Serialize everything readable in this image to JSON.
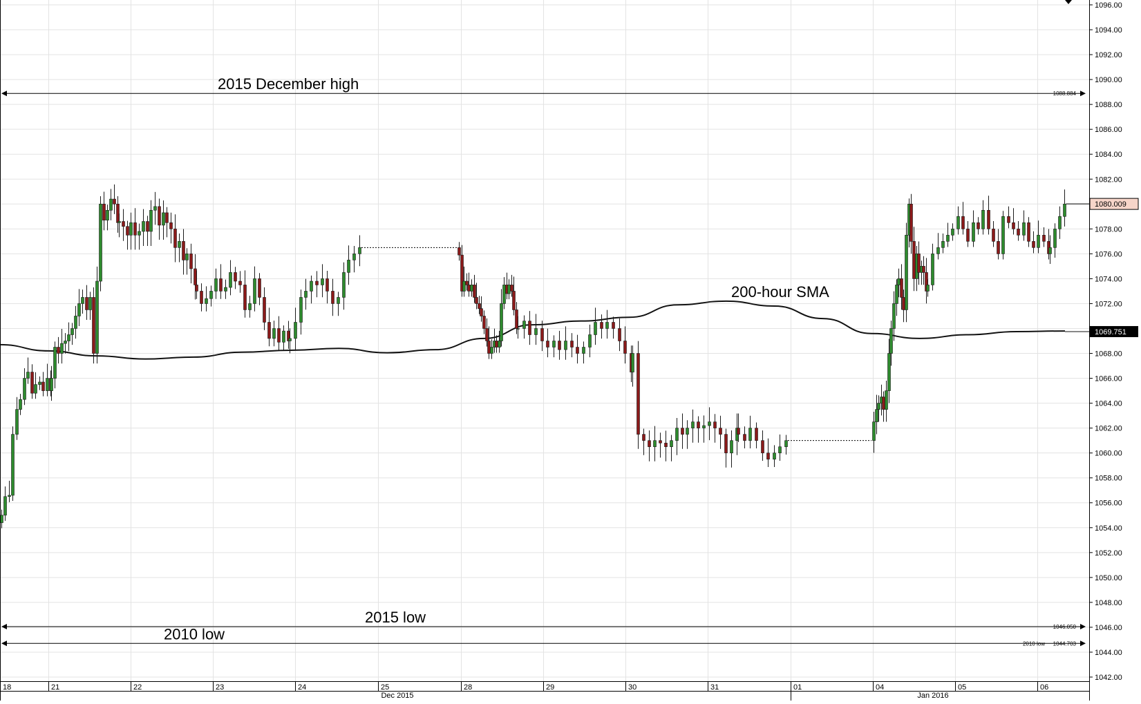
{
  "chart_data": {
    "type": "candlestick",
    "y_axis": {
      "position": "right",
      "ylim": [
        1041.0,
        1096.5
      ],
      "ticks": [
        1042,
        1044,
        1046,
        1048,
        1050,
        1052,
        1054,
        1056,
        1058,
        1060,
        1062,
        1064,
        1066,
        1068,
        1070,
        1072,
        1074,
        1076,
        1078,
        1080,
        1082,
        1084,
        1086,
        1088,
        1090,
        1092,
        1094,
        1096
      ],
      "tick_labels": [
        "1042.00",
        "1044.00",
        "1046.00",
        "1048.00",
        "1050.00",
        "1052.00",
        "1054.00",
        "1056.00",
        "1058.00",
        "1060.00",
        "1062.00",
        "1064.00",
        "1066.00",
        "1068.00",
        "1070.00",
        "1072.00",
        "1074.00",
        "1076.00",
        "1078.00",
        "1080.00",
        "1082.00",
        "1084.00",
        "1086.00",
        "1088.00",
        "1090.00",
        "1092.00",
        "1094.00",
        "1096.00"
      ]
    },
    "x_axis": {
      "day_labels": [
        "18",
        "21",
        "22",
        "23",
        "24",
        "25",
        "28",
        "29",
        "30",
        "31",
        "01",
        "04",
        "05",
        "06"
      ],
      "month_labels": [
        "Dec 2015",
        "Jan 2016"
      ]
    },
    "grid": true,
    "horizontal_levels": [
      {
        "name": "2015 December high",
        "value": 1088.884,
        "label": "2015 December high",
        "value_label": "1088.884"
      },
      {
        "name": "2015 low",
        "value": 1046.05,
        "label": "2015 low",
        "value_label": "1046.050"
      },
      {
        "name": "2010 low",
        "value": 1044.703,
        "label": "2010 low",
        "value_label": "1044.703",
        "small_label": "2010 low"
      }
    ],
    "price_markers": {
      "last_price": 1080.009,
      "last_price_label": "1080.009",
      "sma_value": 1069.751,
      "sma_value_label": "1069.751"
    },
    "annotations": [
      "200-hour SMA"
    ],
    "segments": [
      {
        "day": "18",
        "closes": [
          1055.0,
          1056.5,
          1056.6,
          1061.5,
          1063.5,
          1064.3,
          1066.0,
          1066.5,
          1064.8,
          1065.5,
          1065.7,
          1065.0,
          1066.0,
          1065.0
        ]
      },
      {
        "day": "21",
        "closes": [
          1066.0,
          1068.5,
          1068.0,
          1068.8,
          1069.0,
          1069.5,
          1070.0,
          1071.0,
          1072.0,
          1072.5,
          1071.5,
          1072.5,
          1068.0,
          1073.8,
          1080.0,
          1078.7,
          1079.5,
          1080.4,
          1080.0,
          1078.5
        ]
      },
      {
        "day": "22",
        "closes": [
          1078.6,
          1078.2,
          1077.5,
          1078.5,
          1077.5,
          1077.8,
          1078.6,
          1077.8,
          1079.5,
          1079.8,
          1078.3,
          1079.3,
          1078.5,
          1078.0,
          1076.5,
          1077.0,
          1075.5,
          1076.0,
          1074.8,
          1073.5
        ]
      },
      {
        "day": "23",
        "closes": [
          1073.0,
          1072.0,
          1072.4,
          1073.0,
          1074.0,
          1073.0,
          1073.3,
          1074.5,
          1073.8,
          1073.5,
          1071.5,
          1072.0,
          1074.0,
          1072.5,
          1070.5,
          1069.2,
          1070.0,
          1068.9,
          1069.8,
          1069.0
        ]
      },
      {
        "day": "24",
        "closes": [
          1069.2,
          1070.5,
          1072.5,
          1073.0,
          1073.8,
          1073.5,
          1074.0,
          1073.0,
          1072.0,
          1072.5,
          1074.5,
          1075.5,
          1076.0,
          1076.5
        ]
      },
      {
        "day": "28",
        "closes": [
          1075.9,
          1073.0,
          1073.8,
          1073.5,
          1073.0,
          1073.5,
          1072.5,
          1072.0,
          1071.6,
          1071.0,
          1070.0,
          1069.0,
          1068.0,
          1068.5,
          1069.0,
          1068.5,
          1069.0,
          1072.0,
          1073.5,
          1072.8,
          1073.5,
          1073.0,
          1071.5,
          1070.0
        ]
      },
      {
        "day": "29",
        "closes": [
          1070.0,
          1070.6,
          1069.5,
          1070.0,
          1069.0,
          1068.5,
          1069.0,
          1068.3,
          1069.0,
          1068.5,
          1068.0,
          1068.5,
          1069.5,
          1070.5,
          1070.0,
          1070.5,
          1070.0,
          1069.0,
          1068.0,
          1066.5
        ]
      },
      {
        "day": "30",
        "closes": [
          1068.0,
          1061.5,
          1061.0,
          1060.5,
          1061.0,
          1060.8,
          1060.5,
          1061.0,
          1062.0,
          1061.5,
          1062.0,
          1062.5,
          1062.0,
          1062.2,
          1062.5,
          1062.0,
          1061.5,
          1060.0,
          1061.0,
          1062.0
        ]
      },
      {
        "day": "31",
        "closes": [
          1061.5,
          1061.0,
          1062.0,
          1061.0,
          1060.0,
          1059.5,
          1060.0,
          1060.5,
          1061.0
        ]
      },
      {
        "day": "04",
        "closes": [
          1062.5,
          1063.5,
          1064.0,
          1064.5,
          1063.5,
          1065.0,
          1068.0,
          1070.0,
          1072.0,
          1073.5,
          1074.0,
          1072.5,
          1071.5,
          1077.5,
          1080.0,
          1077.0,
          1074.0,
          1076.0,
          1074.5,
          1075.0,
          1074.5,
          1073.0
        ]
      },
      {
        "day": "05",
        "closes": [
          1073.5,
          1076.0,
          1076.5,
          1077.0,
          1077.5,
          1078.0,
          1079.0,
          1078.0,
          1077.0,
          1078.5,
          1078.0,
          1079.5,
          1078.0,
          1077.0,
          1076.0,
          1079.0,
          1078.5,
          1078.0,
          1077.5,
          1078.5,
          1077.0,
          1076.5,
          1077.5,
          1077.0,
          1076.0
        ]
      },
      {
        "day": "06",
        "closes": [
          1076.5,
          1078.0,
          1079.0,
          1080.0
        ]
      }
    ],
    "sma_200h": [
      1068.7,
      1068.2,
      1067.8,
      1067.55,
      1067.7,
      1068.1,
      1068.25,
      1068.4,
      1068.05,
      1068.3,
      1069.2,
      1070.3,
      1070.6,
      1070.9,
      1071.9,
      1072.2,
      1071.8,
      1070.8,
      1069.6,
      1069.2,
      1069.5,
      1069.75,
      1069.8
    ]
  }
}
